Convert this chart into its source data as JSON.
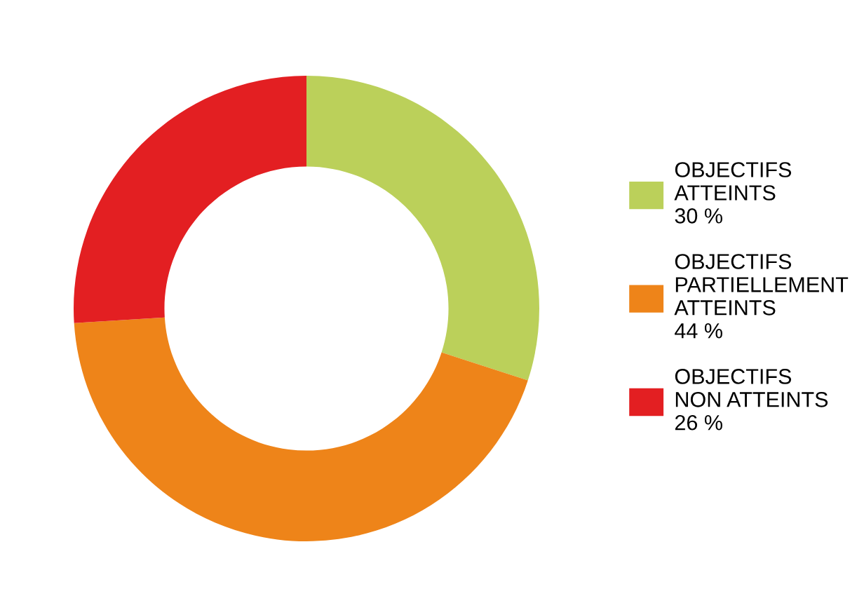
{
  "chart_data": {
    "type": "donut",
    "categories": [
      "OBJECTIFS\nATTEINTS",
      "OBJECTIFS\nPARTIELLEMENT\nATTEINTS",
      "OBJECTIFS\nNON ATTEINTS"
    ],
    "values": [
      30,
      44,
      26
    ],
    "value_labels": [
      "30 %",
      "44 %",
      "26 %"
    ],
    "colors": [
      "#bbd05a",
      "#ee8419",
      "#e31f22"
    ],
    "legend": "right"
  }
}
